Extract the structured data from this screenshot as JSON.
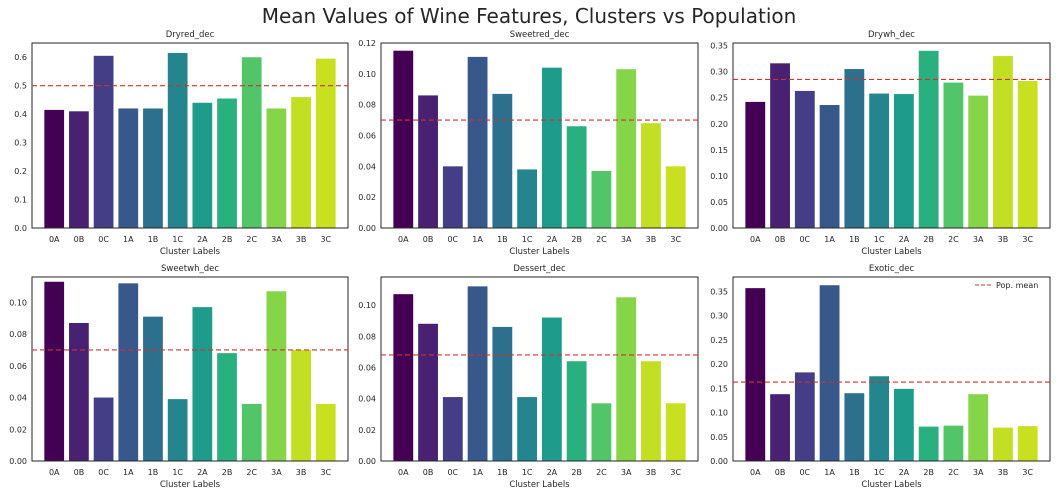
{
  "figure": {
    "title": "Mean Values of Wine Features, Clusters vs Population"
  },
  "chart_data": [
    {
      "type": "bar",
      "title": "Dryred_dec",
      "xlabel": "Cluster Labels",
      "ylabel": "",
      "categories": [
        "0A",
        "0B",
        "0C",
        "1A",
        "1B",
        "1C",
        "2A",
        "2B",
        "2C",
        "3A",
        "3B",
        "3C"
      ],
      "values": [
        0.415,
        0.41,
        0.605,
        0.42,
        0.42,
        0.615,
        0.44,
        0.455,
        0.6,
        0.42,
        0.46,
        0.595
      ],
      "ylim": [
        0,
        0.65
      ],
      "yticks": [
        0,
        0.1,
        0.2,
        0.3,
        0.4,
        0.5,
        0.6
      ],
      "ytick_labels": [
        "0.0",
        "0.1",
        "0.2",
        "0.3",
        "0.4",
        "0.5",
        "0.6"
      ],
      "population_mean": 0.5,
      "legend": null
    },
    {
      "type": "bar",
      "title": "Sweetred_dec",
      "xlabel": "Cluster Labels",
      "ylabel": "",
      "categories": [
        "0A",
        "0B",
        "0C",
        "1A",
        "1B",
        "1C",
        "2A",
        "2B",
        "2C",
        "3A",
        "3B",
        "3C"
      ],
      "values": [
        0.115,
        0.086,
        0.04,
        0.111,
        0.087,
        0.038,
        0.104,
        0.066,
        0.037,
        0.103,
        0.068,
        0.04
      ],
      "ylim": [
        0,
        0.12
      ],
      "yticks": [
        0,
        0.02,
        0.04,
        0.06,
        0.08,
        0.1,
        0.12
      ],
      "ytick_labels": [
        "0.00",
        "0.02",
        "0.04",
        "0.06",
        "0.08",
        "0.10",
        "0.12"
      ],
      "population_mean": 0.07,
      "legend": null
    },
    {
      "type": "bar",
      "title": "Drywh_dec",
      "xlabel": "Cluster Labels",
      "ylabel": "",
      "categories": [
        "0A",
        "0B",
        "0C",
        "1A",
        "1B",
        "1C",
        "2A",
        "2B",
        "2C",
        "3A",
        "3B",
        "3C"
      ],
      "values": [
        0.242,
        0.316,
        0.263,
        0.236,
        0.305,
        0.258,
        0.257,
        0.34,
        0.279,
        0.254,
        0.33,
        0.282
      ],
      "ylim": [
        0,
        0.355
      ],
      "yticks": [
        0,
        0.05,
        0.1,
        0.15,
        0.2,
        0.25,
        0.3,
        0.35
      ],
      "ytick_labels": [
        "0.00",
        "0.05",
        "0.10",
        "0.15",
        "0.20",
        "0.25",
        "0.30",
        "0.35"
      ],
      "population_mean": 0.285,
      "legend": null
    },
    {
      "type": "bar",
      "title": "Sweetwh_dec",
      "xlabel": "Cluster Labels",
      "ylabel": "",
      "categories": [
        "0A",
        "0B",
        "0C",
        "1A",
        "1B",
        "1C",
        "2A",
        "2B",
        "2C",
        "3A",
        "3B",
        "3C"
      ],
      "values": [
        0.113,
        0.087,
        0.04,
        0.112,
        0.091,
        0.039,
        0.097,
        0.068,
        0.036,
        0.107,
        0.07,
        0.036
      ],
      "ylim": [
        0,
        0.116
      ],
      "yticks": [
        0,
        0.02,
        0.04,
        0.06,
        0.08,
        0.1
      ],
      "ytick_labels": [
        "0.00",
        "0.02",
        "0.04",
        "0.06",
        "0.08",
        "0.10"
      ],
      "population_mean": 0.07,
      "legend": null
    },
    {
      "type": "bar",
      "title": "Dessert_dec",
      "xlabel": "Cluster Labels",
      "ylabel": "",
      "categories": [
        "0A",
        "0B",
        "0C",
        "1A",
        "1B",
        "1C",
        "2A",
        "2B",
        "2C",
        "3A",
        "3B",
        "3C"
      ],
      "values": [
        0.107,
        0.088,
        0.041,
        0.112,
        0.086,
        0.041,
        0.092,
        0.064,
        0.037,
        0.105,
        0.064,
        0.037
      ],
      "ylim": [
        0,
        0.118
      ],
      "yticks": [
        0,
        0.02,
        0.04,
        0.06,
        0.08,
        0.1
      ],
      "ytick_labels": [
        "0.00",
        "0.02",
        "0.04",
        "0.06",
        "0.08",
        "0.10"
      ],
      "population_mean": 0.068,
      "legend": null
    },
    {
      "type": "bar",
      "title": "Exotic_dec",
      "xlabel": "Cluster Labels",
      "ylabel": "",
      "categories": [
        "0A",
        "0B",
        "0C",
        "1A",
        "1B",
        "1C",
        "2A",
        "2B",
        "2C",
        "3A",
        "3B",
        "3C"
      ],
      "values": [
        0.357,
        0.138,
        0.183,
        0.363,
        0.14,
        0.175,
        0.149,
        0.071,
        0.073,
        0.138,
        0.069,
        0.072
      ],
      "ylim": [
        0,
        0.38
      ],
      "yticks": [
        0,
        0.05,
        0.1,
        0.15,
        0.2,
        0.25,
        0.3,
        0.35
      ],
      "ytick_labels": [
        "0.00",
        "0.05",
        "0.10",
        "0.15",
        "0.20",
        "0.25",
        "0.30",
        "0.35"
      ],
      "population_mean": 0.163,
      "legend": "Pop. mean"
    }
  ],
  "colors": {
    "bars": [
      "#440154",
      "#482173",
      "#433e85",
      "#38588c",
      "#2d708e",
      "#25858e",
      "#1e9b8a",
      "#2ab07f",
      "#52c569",
      "#86d549",
      "#c2df23",
      "#c8e020"
    ],
    "mean_line": "#cc3333",
    "axis": "#262626"
  }
}
